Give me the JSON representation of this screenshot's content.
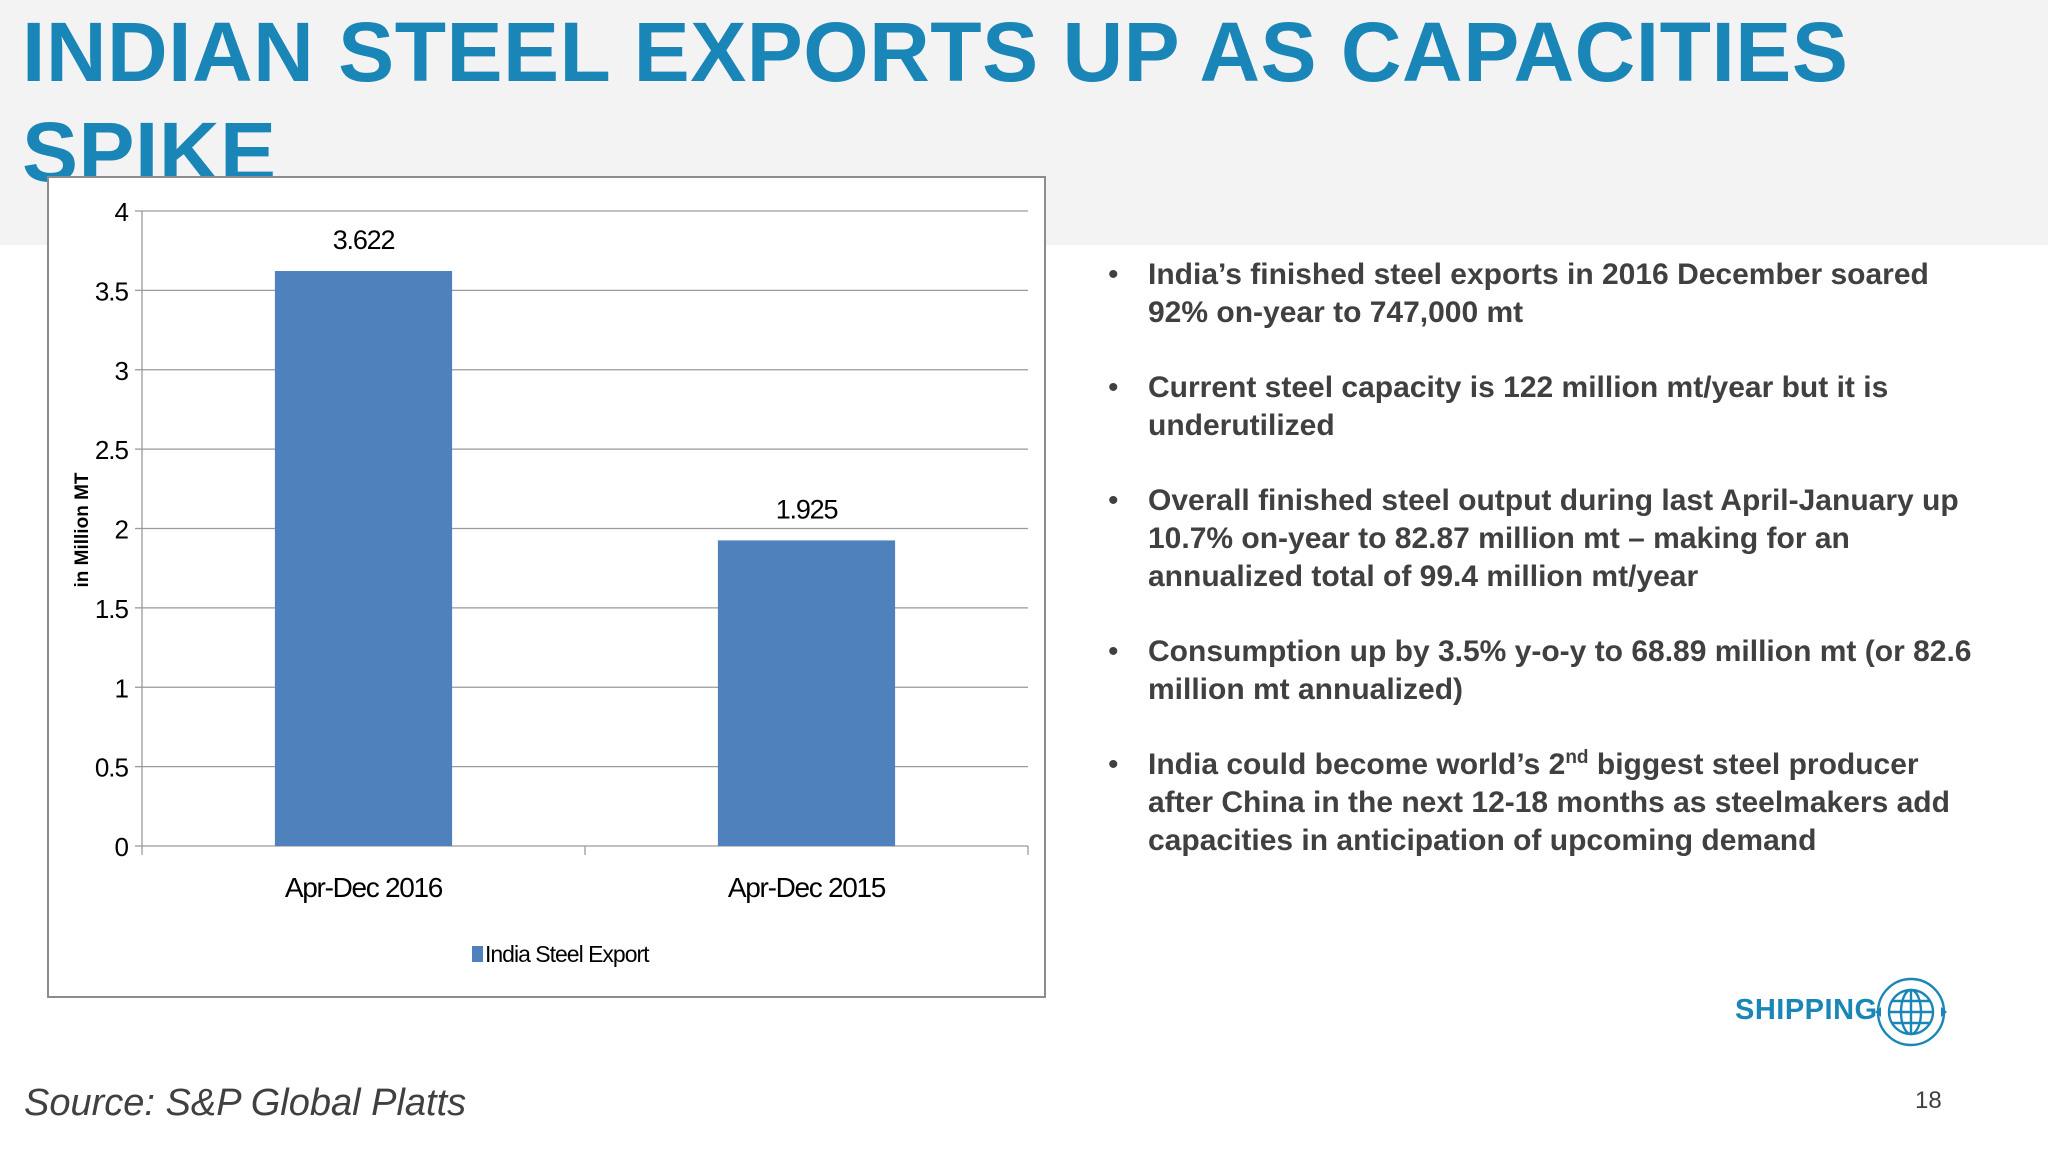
{
  "slide": {
    "title": "INDIAN STEEL EXPORTS UP AS CAPACITIES SPIKE",
    "source": "Source: S&P Global Platts",
    "page_number": "18",
    "brand": {
      "label": "SHIPPING",
      "icon": "globe-icon",
      "color": "#1a86b8"
    }
  },
  "bullets": [
    {
      "text": "India’s finished steel exports in 2016 December soared 92% on-year  to 747,000 mt"
    },
    {
      "text": "Current steel capacity is 122 million mt/year but it is underutilized"
    },
    {
      "text": "Overall finished steel output during last April-January up 10.7% on-year to 82.87 million mt – making for an annualized total of 99.4 million mt/year"
    },
    {
      "text": "Consumption up by 3.5% y-o-y to 68.89 million mt (or 82.6 million mt annualized)"
    },
    {
      "before": "India could become world’s 2",
      "sup": "nd",
      "after": " biggest steel producer after China in the next 12-18 months as steelmakers add capacities in anticipation of upcoming demand"
    }
  ],
  "chart_data": {
    "type": "bar",
    "categories": [
      "Apr-Dec 2016",
      "Apr-Dec 2015"
    ],
    "series": [
      {
        "name": "India Steel Export",
        "values": [
          3.622,
          1.925
        ],
        "color": "#4f81bd"
      }
    ],
    "data_labels": [
      "3.622",
      "1.925"
    ],
    "ylabel": "in Million MT",
    "ylim": [
      0,
      4
    ],
    "yticks": [
      0,
      0.5,
      1,
      1.5,
      2,
      2.5,
      3,
      3.5,
      4
    ],
    "ytick_labels": [
      "0",
      "0.5",
      "1",
      "1.5",
      "2",
      "2.5",
      "3",
      "3.5",
      "4"
    ],
    "grid": true,
    "legend_position": "bottom"
  }
}
